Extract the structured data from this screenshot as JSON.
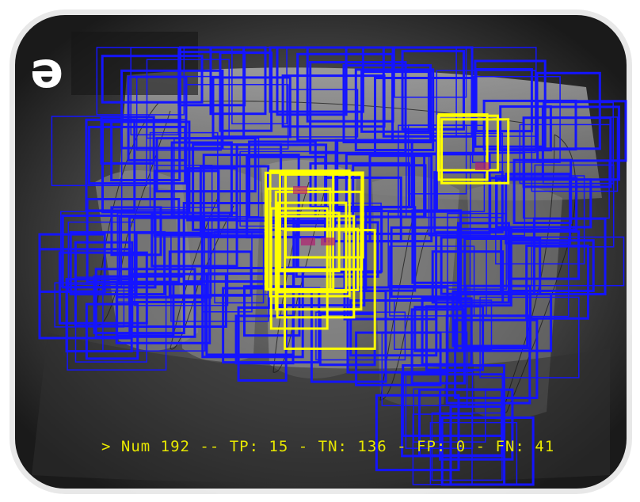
{
  "film_marker": "e",
  "stats_text": "> Num 192 -- TP: 15 - TN: 136 - FP: 0 - FN: 41",
  "counts": {
    "num": 192,
    "tp": 15,
    "tn": 136,
    "fp": 0,
    "fn": 41
  },
  "colors": {
    "negative_box": "#1414ff",
    "positive_box": "#ffff00",
    "stats_text": "#e8e800",
    "marker": "#ffffff",
    "frame": "#ffffff"
  }
}
